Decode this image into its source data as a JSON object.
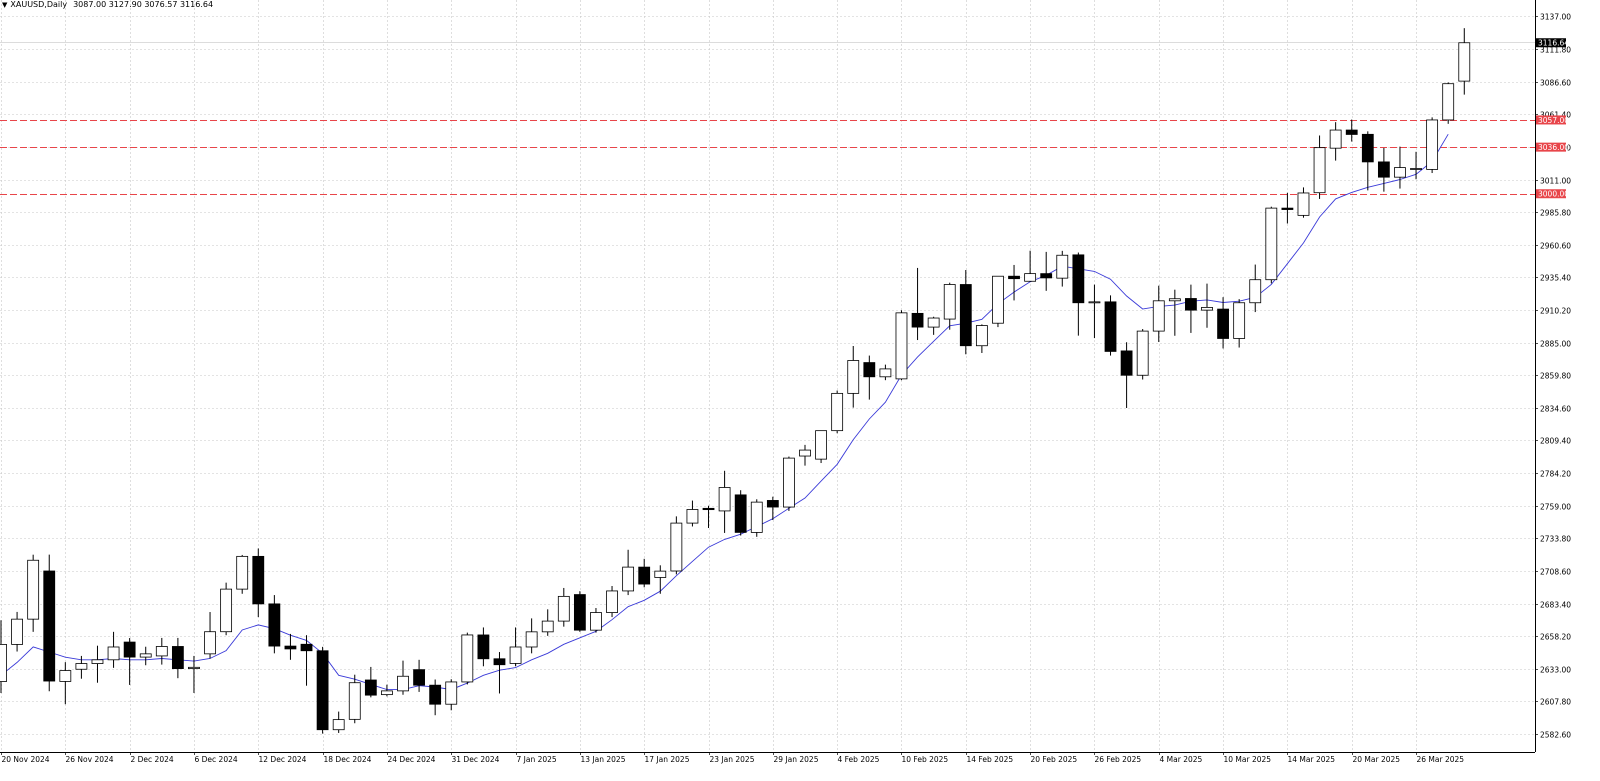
{
  "window": {
    "symbol_timeframe": "XAUUSD,Daily",
    "ohlc_text": "3087.00 3127.90 3076.57 3116.64",
    "menu_icon": "triangle-down-icon"
  },
  "colors": {
    "background": "#ffffff",
    "grid": "#c8c8c8",
    "bull_fill": "#ffffff",
    "bear_fill": "#000000",
    "candle_outline": "#000000",
    "ma_line": "#3a3ad8",
    "level_line": "#e8454a",
    "level_tag_bg": "#e8454a",
    "price_tag_bg": "#000000"
  },
  "chart_data": {
    "type": "candlestick",
    "instrument": "XAUUSD",
    "timeframe": "Daily",
    "ylim": [
      2573.42,
      3145.02
    ],
    "y_ticks": [
      "3137.00",
      "3111.80",
      "3086.60",
      "3061.40",
      "3036.20",
      "3011.00",
      "2985.80",
      "2960.60",
      "2935.40",
      "2910.20",
      "2885.00",
      "2859.80",
      "2834.60",
      "2809.40",
      "2784.20",
      "2759.00",
      "2733.80",
      "2708.60",
      "2683.40",
      "2658.20",
      "2633.00",
      "2607.80",
      "2582.60"
    ],
    "x_date_labels": [
      {
        "label": "20 Nov 2024",
        "bar": 0
      },
      {
        "label": "26 Nov 2024",
        "bar": 4
      },
      {
        "label": "2 Dec 2024",
        "bar": 8
      },
      {
        "label": "6 Dec 2024",
        "bar": 12
      },
      {
        "label": "12 Dec 2024",
        "bar": 16
      },
      {
        "label": "18 Dec 2024",
        "bar": 20
      },
      {
        "label": "24 Dec 2024",
        "bar": 24
      },
      {
        "label": "31 Dec 2024",
        "bar": 28
      },
      {
        "label": "7 Jan 2025",
        "bar": 32
      },
      {
        "label": "13 Jan 2025",
        "bar": 36
      },
      {
        "label": "17 Jan 2025",
        "bar": 40
      },
      {
        "label": "23 Jan 2025",
        "bar": 44
      },
      {
        "label": "29 Jan 2025",
        "bar": 48
      },
      {
        "label": "4 Feb 2025",
        "bar": 52
      },
      {
        "label": "10 Feb 2025",
        "bar": 56
      },
      {
        "label": "14 Feb 2025",
        "bar": 60
      },
      {
        "label": "20 Feb 2025",
        "bar": 64
      },
      {
        "label": "26 Feb 2025",
        "bar": 68
      },
      {
        "label": "4 Mar 2025",
        "bar": 72
      },
      {
        "label": "10 Mar 2025",
        "bar": 76
      },
      {
        "label": "14 Mar 2025",
        "bar": 80
      },
      {
        "label": "20 Mar 2025",
        "bar": 84
      },
      {
        "label": "26 Mar 2025",
        "bar": 88
      }
    ],
    "candles": [
      {
        "o": 2623.2,
        "h": 2670.6,
        "l": 2614.4,
        "c": 2651.9
      },
      {
        "o": 2651.9,
        "h": 2677.0,
        "l": 2646.4,
        "c": 2671.4
      },
      {
        "o": 2671.4,
        "h": 2721.2,
        "l": 2661.6,
        "c": 2716.9
      },
      {
        "o": 2708.6,
        "h": 2721.2,
        "l": 2615.7,
        "c": 2623.6
      },
      {
        "o": 2623.3,
        "h": 2638.2,
        "l": 2605.7,
        "c": 2631.7
      },
      {
        "o": 2632.7,
        "h": 2643.0,
        "l": 2625.4,
        "c": 2637.1
      },
      {
        "o": 2637.1,
        "h": 2650.9,
        "l": 2622.3,
        "c": 2640.0
      },
      {
        "o": 2640.0,
        "h": 2661.6,
        "l": 2633.8,
        "c": 2649.9
      },
      {
        "o": 2653.7,
        "h": 2656.8,
        "l": 2620.6,
        "c": 2642.1
      },
      {
        "o": 2642.1,
        "h": 2650.1,
        "l": 2635.8,
        "c": 2644.6
      },
      {
        "o": 2643.0,
        "h": 2656.9,
        "l": 2636.3,
        "c": 2650.3
      },
      {
        "o": 2650.3,
        "h": 2656.9,
        "l": 2625.8,
        "c": 2633.2
      },
      {
        "o": 2633.2,
        "h": 2643.0,
        "l": 2614.4,
        "c": 2634.2
      },
      {
        "o": 2644.6,
        "h": 2676.9,
        "l": 2641.0,
        "c": 2661.7
      },
      {
        "o": 2661.7,
        "h": 2699.6,
        "l": 2659.0,
        "c": 2694.6
      },
      {
        "o": 2694.6,
        "h": 2721.0,
        "l": 2691.0,
        "c": 2719.9
      },
      {
        "o": 2719.9,
        "h": 2726.0,
        "l": 2673.0,
        "c": 2683.2
      },
      {
        "o": 2683.2,
        "h": 2690.0,
        "l": 2645.0,
        "c": 2650.6
      },
      {
        "o": 2650.6,
        "h": 2660.0,
        "l": 2640.0,
        "c": 2648.4
      },
      {
        "o": 2652.0,
        "h": 2659.0,
        "l": 2620.0,
        "c": 2647.0
      },
      {
        "o": 2647.0,
        "h": 2650.0,
        "l": 2583.0,
        "c": 2586.0
      },
      {
        "o": 2586.0,
        "h": 2600.0,
        "l": 2583.5,
        "c": 2593.8
      },
      {
        "o": 2594.0,
        "h": 2628.5,
        "l": 2591.0,
        "c": 2622.3
      },
      {
        "o": 2624.4,
        "h": 2634.5,
        "l": 2611.0,
        "c": 2612.7
      },
      {
        "o": 2613.1,
        "h": 2620.8,
        "l": 2611.8,
        "c": 2616.0
      },
      {
        "o": 2616.0,
        "h": 2639.4,
        "l": 2613.0,
        "c": 2627.3
      },
      {
        "o": 2632.4,
        "h": 2640.0,
        "l": 2615.2,
        "c": 2620.4
      },
      {
        "o": 2620.4,
        "h": 2624.8,
        "l": 2597.2,
        "c": 2605.7
      },
      {
        "o": 2605.7,
        "h": 2625.0,
        "l": 2601.0,
        "c": 2622.9
      },
      {
        "o": 2622.9,
        "h": 2661.0,
        "l": 2621.0,
        "c": 2659.2
      },
      {
        "o": 2659.2,
        "h": 2665.0,
        "l": 2635.0,
        "c": 2640.8
      },
      {
        "o": 2640.8,
        "h": 2646.0,
        "l": 2614.0,
        "c": 2636.2
      },
      {
        "o": 2637.2,
        "h": 2665.0,
        "l": 2635.0,
        "c": 2649.9
      },
      {
        "o": 2649.9,
        "h": 2672.0,
        "l": 2645.0,
        "c": 2661.6
      },
      {
        "o": 2661.6,
        "h": 2679.0,
        "l": 2658.5,
        "c": 2669.9
      },
      {
        "o": 2669.9,
        "h": 2695.5,
        "l": 2665.6,
        "c": 2689.0
      },
      {
        "o": 2690.4,
        "h": 2693.0,
        "l": 2661.6,
        "c": 2662.9
      },
      {
        "o": 2662.9,
        "h": 2680.0,
        "l": 2661.0,
        "c": 2676.5
      },
      {
        "o": 2676.5,
        "h": 2697.0,
        "l": 2673.0,
        "c": 2693.2
      },
      {
        "o": 2693.2,
        "h": 2725.0,
        "l": 2690.0,
        "c": 2711.6
      },
      {
        "o": 2711.6,
        "h": 2718.0,
        "l": 2696.0,
        "c": 2698.5
      },
      {
        "o": 2703.6,
        "h": 2713.0,
        "l": 2691.0,
        "c": 2708.5
      },
      {
        "o": 2708.6,
        "h": 2750.8,
        "l": 2706.0,
        "c": 2745.6
      },
      {
        "o": 2745.6,
        "h": 2763.0,
        "l": 2743.0,
        "c": 2756.1
      },
      {
        "o": 2757.0,
        "h": 2759.0,
        "l": 2741.8,
        "c": 2756.0
      },
      {
        "o": 2755.0,
        "h": 2786.0,
        "l": 2738.0,
        "c": 2773.1
      },
      {
        "o": 2767.4,
        "h": 2771.0,
        "l": 2736.0,
        "c": 2738.4
      },
      {
        "o": 2738.4,
        "h": 2764.0,
        "l": 2735.0,
        "c": 2761.8
      },
      {
        "o": 2763.1,
        "h": 2766.0,
        "l": 2748.0,
        "c": 2758.0
      },
      {
        "o": 2758.0,
        "h": 2797.0,
        "l": 2755.0,
        "c": 2795.8
      },
      {
        "o": 2797.4,
        "h": 2806.0,
        "l": 2790.0,
        "c": 2802.0
      },
      {
        "o": 2795.0,
        "h": 2817.0,
        "l": 2792.0,
        "c": 2817.0
      },
      {
        "o": 2817.0,
        "h": 2848.0,
        "l": 2815.0,
        "c": 2845.8
      },
      {
        "o": 2845.8,
        "h": 2882.4,
        "l": 2834.8,
        "c": 2871.2
      },
      {
        "o": 2869.6,
        "h": 2875.0,
        "l": 2841.0,
        "c": 2858.6
      },
      {
        "o": 2858.6,
        "h": 2868.0,
        "l": 2856.0,
        "c": 2864.7
      },
      {
        "o": 2857.0,
        "h": 2910.0,
        "l": 2856.0,
        "c": 2908.0
      },
      {
        "o": 2907.6,
        "h": 2942.7,
        "l": 2887.0,
        "c": 2897.0
      },
      {
        "o": 2897.0,
        "h": 2905.0,
        "l": 2891.0,
        "c": 2904.0
      },
      {
        "o": 2903.2,
        "h": 2931.3,
        "l": 2895.0,
        "c": 2929.9
      },
      {
        "o": 2929.9,
        "h": 2941.1,
        "l": 2876.0,
        "c": 2882.6
      },
      {
        "o": 2882.6,
        "h": 2899.1,
        "l": 2877.0,
        "c": 2898.2
      },
      {
        "o": 2900.0,
        "h": 2935.4,
        "l": 2897.0,
        "c": 2936.3
      },
      {
        "o": 2936.3,
        "h": 2945.0,
        "l": 2917.6,
        "c": 2934.4
      },
      {
        "o": 2932.4,
        "h": 2956.0,
        "l": 2932.0,
        "c": 2938.3
      },
      {
        "o": 2938.3,
        "h": 2955.1,
        "l": 2925.0,
        "c": 2935.0
      },
      {
        "o": 2934.8,
        "h": 2955.9,
        "l": 2928.3,
        "c": 2952.5
      },
      {
        "o": 2952.8,
        "h": 2954.6,
        "l": 2890.4,
        "c": 2915.8
      },
      {
        "o": 2915.8,
        "h": 2929.8,
        "l": 2888.5,
        "c": 2916.5
      },
      {
        "o": 2916.5,
        "h": 2921.5,
        "l": 2875.0,
        "c": 2878.2
      },
      {
        "o": 2878.6,
        "h": 2885.3,
        "l": 2834.5,
        "c": 2859.8
      },
      {
        "o": 2859.8,
        "h": 2895.5,
        "l": 2856.5,
        "c": 2893.9
      },
      {
        "o": 2893.9,
        "h": 2929.0,
        "l": 2885.5,
        "c": 2917.3
      },
      {
        "o": 2917.3,
        "h": 2925.9,
        "l": 2890.3,
        "c": 2918.9
      },
      {
        "o": 2919.1,
        "h": 2929.8,
        "l": 2892.5,
        "c": 2910.1
      },
      {
        "o": 2910.1,
        "h": 2930.6,
        "l": 2896.5,
        "c": 2912.2
      },
      {
        "o": 2910.9,
        "h": 2920.1,
        "l": 2880.5,
        "c": 2888.2
      },
      {
        "o": 2888.2,
        "h": 2918.6,
        "l": 2881.2,
        "c": 2915.8
      },
      {
        "o": 2915.8,
        "h": 2945.3,
        "l": 2908.6,
        "c": 2933.6
      },
      {
        "o": 2933.6,
        "h": 2990.0,
        "l": 2930.8,
        "c": 2988.9
      },
      {
        "o": 2988.9,
        "h": 3000.7,
        "l": 2977.0,
        "c": 2987.8
      },
      {
        "o": 2983.3,
        "h": 3004.9,
        "l": 2981.5,
        "c": 3000.6
      },
      {
        "o": 3000.8,
        "h": 3045.0,
        "l": 2996.0,
        "c": 3035.6
      },
      {
        "o": 3035.2,
        "h": 3055.3,
        "l": 3025.6,
        "c": 3049.2
      },
      {
        "o": 3049.2,
        "h": 3057.3,
        "l": 3040.3,
        "c": 3045.8
      },
      {
        "o": 3045.9,
        "h": 3048.2,
        "l": 3002.6,
        "c": 3024.6
      },
      {
        "o": 3024.6,
        "h": 3035.4,
        "l": 3001.6,
        "c": 3012.8
      },
      {
        "o": 3012.8,
        "h": 3036.4,
        "l": 3004.0,
        "c": 3020.2
      },
      {
        "o": 3019.5,
        "h": 3032.4,
        "l": 3011.2,
        "c": 3019.5
      },
      {
        "o": 3018.8,
        "h": 3059.0,
        "l": 3016.0,
        "c": 3057.0
      },
      {
        "o": 3057.0,
        "h": 3086.0,
        "l": 3054.0,
        "c": 3085.0
      },
      {
        "o": 3087.0,
        "h": 3127.9,
        "l": 3076.57,
        "c": 3116.64
      }
    ],
    "ma_line": [
      2628.0,
      2638.0,
      2650.0,
      2646.0,
      2642.0,
      2640.0,
      2640.0,
      2641.0,
      2640.0,
      2640.0,
      2641.0,
      2640.0,
      2639.0,
      2641.0,
      2647.0,
      2663.0,
      2667.0,
      2664.0,
      2659.0,
      2655.0,
      2645.0,
      2628.0,
      2625.0,
      2621.0,
      2617.0,
      2617.0,
      2620.0,
      2619.0,
      2617.0,
      2622.0,
      2628.0,
      2632.0,
      2634.0,
      2640.0,
      2645.0,
      2652.0,
      2657.0,
      2662.0,
      2671.0,
      2681.0,
      2686.0,
      2693.0,
      2705.0,
      2716.0,
      2727.0,
      2733.0,
      2737.0,
      2743.0,
      2749.0,
      2757.0,
      2765.0,
      2778.0,
      2791.0,
      2810.0,
      2826.0,
      2839.0,
      2860.0,
      2874.0,
      2886.0,
      2898.0,
      2900.0,
      2903.0,
      2915.0,
      2924.0,
      2932.0,
      2937.0,
      2944.0,
      2942.0,
      2940.0,
      2934.0,
      2921.0,
      2911.0,
      2913.0,
      2914.0,
      2917.0,
      2918.0,
      2916.0,
      2917.0,
      2920.0,
      2930.0,
      2946.0,
      2962.0,
      2982.0,
      2996.0,
      3001.0,
      3005.0,
      3008.0,
      3011.0,
      3015.0,
      3025.0,
      3046.0
    ],
    "horizontal_levels": [
      {
        "label": "3057.00",
        "value": 3057.0
      },
      {
        "label": "3036.00",
        "value": 3036.0
      },
      {
        "label": "3000.00",
        "value": 3000.0
      }
    ],
    "current_price_label": "3116.64",
    "current_price": 3116.64
  }
}
